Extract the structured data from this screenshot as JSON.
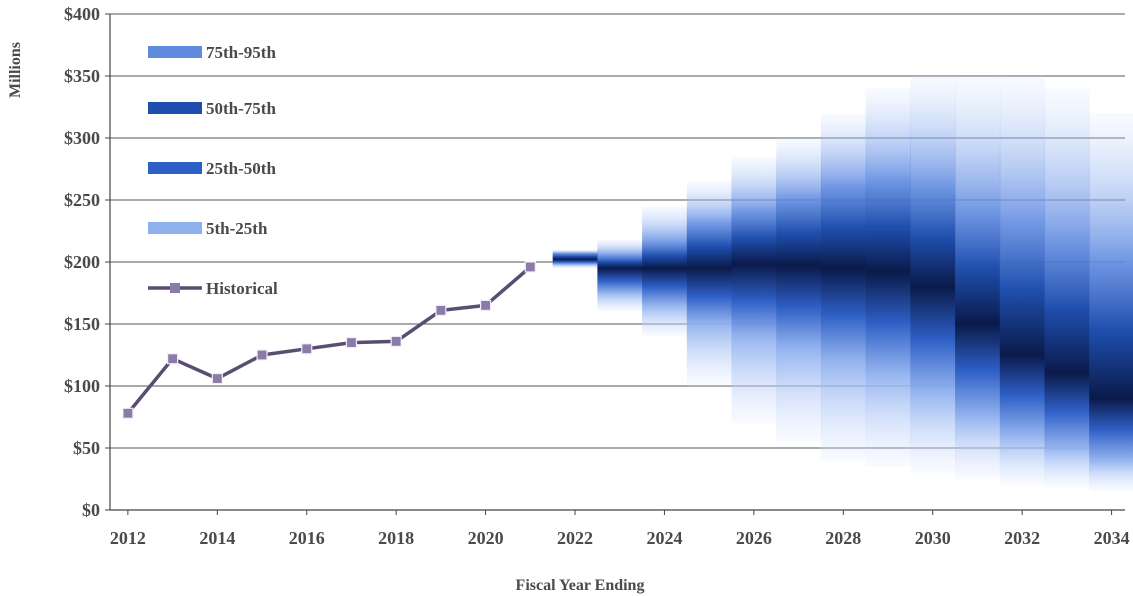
{
  "chart_data": {
    "type": "area",
    "title": "",
    "xlabel": "Fiscal Year Ending",
    "ylabel": "Millions",
    "xlim": [
      2011.6,
      2034.3
    ],
    "ylim": [
      0,
      400
    ],
    "y_ticks": [
      0,
      50,
      100,
      150,
      200,
      250,
      300,
      350,
      400
    ],
    "y_tick_labels": [
      "$0",
      "$50",
      "$100",
      "$150",
      "$200",
      "$250",
      "$300",
      "$350",
      "$400"
    ],
    "x_ticks": [
      2012,
      2014,
      2016,
      2018,
      2020,
      2022,
      2024,
      2026,
      2028,
      2030,
      2032,
      2034
    ],
    "x_tick_labels": [
      "2012",
      "2014",
      "2016",
      "2018",
      "2020",
      "2022",
      "2024",
      "2026",
      "2028",
      "2030",
      "2032",
      "2034"
    ],
    "grid": true,
    "legend_position": "top-left",
    "legend": [
      "75th-95th",
      "50th-75th",
      "25th-50th",
      "5th-25th",
      "Historical"
    ],
    "historical": {
      "name": "Historical",
      "x": [
        2012,
        2013,
        2014,
        2015,
        2016,
        2017,
        2018,
        2019,
        2020,
        2021
      ],
      "values": [
        78,
        122,
        106,
        125,
        130,
        135,
        136,
        161,
        165,
        196
      ]
    },
    "projection_bands": {
      "x": [
        2022,
        2023,
        2024,
        2025,
        2026,
        2027,
        2028,
        2029,
        2030,
        2031,
        2032,
        2033,
        2034
      ],
      "p5": [
        195,
        160,
        140,
        100,
        70,
        55,
        40,
        35,
        30,
        25,
        20,
        18,
        15
      ],
      "p25": [
        198,
        175,
        165,
        150,
        140,
        130,
        120,
        110,
        95,
        75,
        60,
        50,
        40
      ],
      "p50": [
        202,
        195,
        195,
        195,
        198,
        197,
        195,
        192,
        180,
        150,
        125,
        110,
        90
      ],
      "p75": [
        207,
        205,
        215,
        230,
        240,
        250,
        260,
        265,
        260,
        240,
        230,
        215,
        200
      ],
      "p95": [
        210,
        218,
        245,
        265,
        285,
        300,
        320,
        340,
        350,
        350,
        350,
        340,
        320
      ]
    },
    "colors": {
      "band_5_25": "#8fb0ee",
      "band_25_50": "#2e5fc6",
      "band_50_75": "#1f4fae",
      "band_75_95": "#5f8ae0",
      "median": "#0a1a4a",
      "historical_line": "#5a4d72",
      "historical_marker": "#8c7aa8",
      "grid": "#555555"
    }
  }
}
